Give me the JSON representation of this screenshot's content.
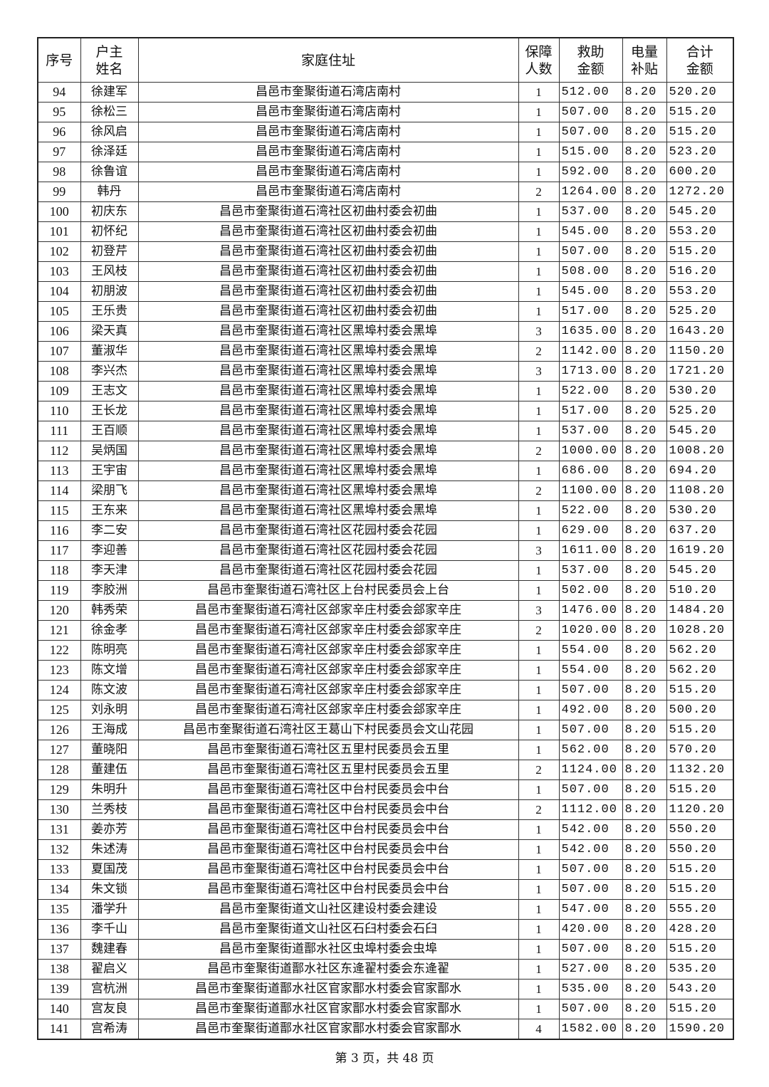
{
  "headers": [
    "序号",
    "户主\n姓名",
    "家庭住址",
    "保障\n人数",
    "救助\n金额",
    "电量\n补贴",
    "合计\n金额"
  ],
  "rows": [
    [
      "94",
      "徐建军",
      "昌邑市奎聚街道石湾店南村",
      "1",
      "512.00",
      "8.20",
      "520.20"
    ],
    [
      "95",
      "徐松三",
      "昌邑市奎聚街道石湾店南村",
      "1",
      "507.00",
      "8.20",
      "515.20"
    ],
    [
      "96",
      "徐风启",
      "昌邑市奎聚街道石湾店南村",
      "1",
      "507.00",
      "8.20",
      "515.20"
    ],
    [
      "97",
      "徐泽廷",
      "昌邑市奎聚街道石湾店南村",
      "1",
      "515.00",
      "8.20",
      "523.20"
    ],
    [
      "98",
      "徐鲁谊",
      "昌邑市奎聚街道石湾店南村",
      "1",
      "592.00",
      "8.20",
      "600.20"
    ],
    [
      "99",
      "韩丹",
      "昌邑市奎聚街道石湾店南村",
      "2",
      "1264.00",
      "8.20",
      "1272.20"
    ],
    [
      "100",
      "初庆东",
      "昌邑市奎聚街道石湾社区初曲村委会初曲",
      "1",
      "537.00",
      "8.20",
      "545.20"
    ],
    [
      "101",
      "初怀纪",
      "昌邑市奎聚街道石湾社区初曲村委会初曲",
      "1",
      "545.00",
      "8.20",
      "553.20"
    ],
    [
      "102",
      "初登芹",
      "昌邑市奎聚街道石湾社区初曲村委会初曲",
      "1",
      "507.00",
      "8.20",
      "515.20"
    ],
    [
      "103",
      "王风枝",
      "昌邑市奎聚街道石湾社区初曲村委会初曲",
      "1",
      "508.00",
      "8.20",
      "516.20"
    ],
    [
      "104",
      "初朋波",
      "昌邑市奎聚街道石湾社区初曲村委会初曲",
      "1",
      "545.00",
      "8.20",
      "553.20"
    ],
    [
      "105",
      "王乐贵",
      "昌邑市奎聚街道石湾社区初曲村委会初曲",
      "1",
      "517.00",
      "8.20",
      "525.20"
    ],
    [
      "106",
      "梁天真",
      "昌邑市奎聚街道石湾社区黑埠村委会黑埠",
      "3",
      "1635.00",
      "8.20",
      "1643.20"
    ],
    [
      "107",
      "董淑华",
      "昌邑市奎聚街道石湾社区黑埠村委会黑埠",
      "2",
      "1142.00",
      "8.20",
      "1150.20"
    ],
    [
      "108",
      "李兴杰",
      "昌邑市奎聚街道石湾社区黑埠村委会黑埠",
      "3",
      "1713.00",
      "8.20",
      "1721.20"
    ],
    [
      "109",
      "王志文",
      "昌邑市奎聚街道石湾社区黑埠村委会黑埠",
      "1",
      "522.00",
      "8.20",
      "530.20"
    ],
    [
      "110",
      "王长龙",
      "昌邑市奎聚街道石湾社区黑埠村委会黑埠",
      "1",
      "517.00",
      "8.20",
      "525.20"
    ],
    [
      "111",
      "王百顺",
      "昌邑市奎聚街道石湾社区黑埠村委会黑埠",
      "1",
      "537.00",
      "8.20",
      "545.20"
    ],
    [
      "112",
      "吴炳国",
      "昌邑市奎聚街道石湾社区黑埠村委会黑埠",
      "2",
      "1000.00",
      "8.20",
      "1008.20"
    ],
    [
      "113",
      "王宇宙",
      "昌邑市奎聚街道石湾社区黑埠村委会黑埠",
      "1",
      "686.00",
      "8.20",
      "694.20"
    ],
    [
      "114",
      "梁朋飞",
      "昌邑市奎聚街道石湾社区黑埠村委会黑埠",
      "2",
      "1100.00",
      "8.20",
      "1108.20"
    ],
    [
      "115",
      "王东来",
      "昌邑市奎聚街道石湾社区黑埠村委会黑埠",
      "1",
      "522.00",
      "8.20",
      "530.20"
    ],
    [
      "116",
      "李二安",
      "昌邑市奎聚街道石湾社区花园村委会花园",
      "1",
      "629.00",
      "8.20",
      "637.20"
    ],
    [
      "117",
      "李迎善",
      "昌邑市奎聚街道石湾社区花园村委会花园",
      "3",
      "1611.00",
      "8.20",
      "1619.20"
    ],
    [
      "118",
      "李天津",
      "昌邑市奎聚街道石湾社区花园村委会花园",
      "1",
      "537.00",
      "8.20",
      "545.20"
    ],
    [
      "119",
      "李胶洲",
      "昌邑市奎聚街道石湾社区上台村民委员会上台",
      "1",
      "502.00",
      "8.20",
      "510.20"
    ],
    [
      "120",
      "韩秀荣",
      "昌邑市奎聚街道石湾社区郐家辛庄村委会郐家辛庄",
      "3",
      "1476.00",
      "8.20",
      "1484.20"
    ],
    [
      "121",
      "徐金孝",
      "昌邑市奎聚街道石湾社区郐家辛庄村委会郐家辛庄",
      "2",
      "1020.00",
      "8.20",
      "1028.20"
    ],
    [
      "122",
      "陈明亮",
      "昌邑市奎聚街道石湾社区郐家辛庄村委会郐家辛庄",
      "1",
      "554.00",
      "8.20",
      "562.20"
    ],
    [
      "123",
      "陈文增",
      "昌邑市奎聚街道石湾社区郐家辛庄村委会郐家辛庄",
      "1",
      "554.00",
      "8.20",
      "562.20"
    ],
    [
      "124",
      "陈文波",
      "昌邑市奎聚街道石湾社区郐家辛庄村委会郐家辛庄",
      "1",
      "507.00",
      "8.20",
      "515.20"
    ],
    [
      "125",
      "刘永明",
      "昌邑市奎聚街道石湾社区郐家辛庄村委会郐家辛庄",
      "1",
      "492.00",
      "8.20",
      "500.20"
    ],
    [
      "126",
      "王海成",
      "昌邑市奎聚街道石湾社区王葛山下村民委员会文山花园",
      "1",
      "507.00",
      "8.20",
      "515.20"
    ],
    [
      "127",
      "董晓阳",
      "昌邑市奎聚街道石湾社区五里村民委员会五里",
      "1",
      "562.00",
      "8.20",
      "570.20"
    ],
    [
      "128",
      "董建伍",
      "昌邑市奎聚街道石湾社区五里村民委员会五里",
      "2",
      "1124.00",
      "8.20",
      "1132.20"
    ],
    [
      "129",
      "朱明升",
      "昌邑市奎聚街道石湾社区中台村民委员会中台",
      "1",
      "507.00",
      "8.20",
      "515.20"
    ],
    [
      "130",
      "兰秀枝",
      "昌邑市奎聚街道石湾社区中台村民委员会中台",
      "2",
      "1112.00",
      "8.20",
      "1120.20"
    ],
    [
      "131",
      "姜亦芳",
      "昌邑市奎聚街道石湾社区中台村民委员会中台",
      "1",
      "542.00",
      "8.20",
      "550.20"
    ],
    [
      "132",
      "朱述涛",
      "昌邑市奎聚街道石湾社区中台村民委员会中台",
      "1",
      "542.00",
      "8.20",
      "550.20"
    ],
    [
      "133",
      "夏国茂",
      "昌邑市奎聚街道石湾社区中台村民委员会中台",
      "1",
      "507.00",
      "8.20",
      "515.20"
    ],
    [
      "134",
      "朱文锁",
      "昌邑市奎聚街道石湾社区中台村民委员会中台",
      "1",
      "507.00",
      "8.20",
      "515.20"
    ],
    [
      "135",
      "潘学升",
      "昌邑市奎聚街道文山社区建设村委会建设",
      "1",
      "547.00",
      "8.20",
      "555.20"
    ],
    [
      "136",
      "李千山",
      "昌邑市奎聚街道文山社区石臼村委会石臼",
      "1",
      "420.00",
      "8.20",
      "428.20"
    ],
    [
      "137",
      "魏建春",
      "昌邑市奎聚街道鄑水社区虫埠村委会虫埠",
      "1",
      "507.00",
      "8.20",
      "515.20"
    ],
    [
      "138",
      "翟启义",
      "昌邑市奎聚街道鄑水社区东逄翟村委会东逄翟",
      "1",
      "527.00",
      "8.20",
      "535.20"
    ],
    [
      "139",
      "宫杭洲",
      "昌邑市奎聚街道鄑水社区官家鄑水村委会官家鄑水",
      "1",
      "535.00",
      "8.20",
      "543.20"
    ],
    [
      "140",
      "宫友良",
      "昌邑市奎聚街道鄑水社区官家鄑水村委会官家鄑水",
      "1",
      "507.00",
      "8.20",
      "515.20"
    ],
    [
      "141",
      "宫希涛",
      "昌邑市奎聚街道鄑水社区官家鄑水村委会官家鄑水",
      "4",
      "1582.00",
      "8.20",
      "1590.20"
    ]
  ],
  "footer": "第 3 页，共 48 页"
}
